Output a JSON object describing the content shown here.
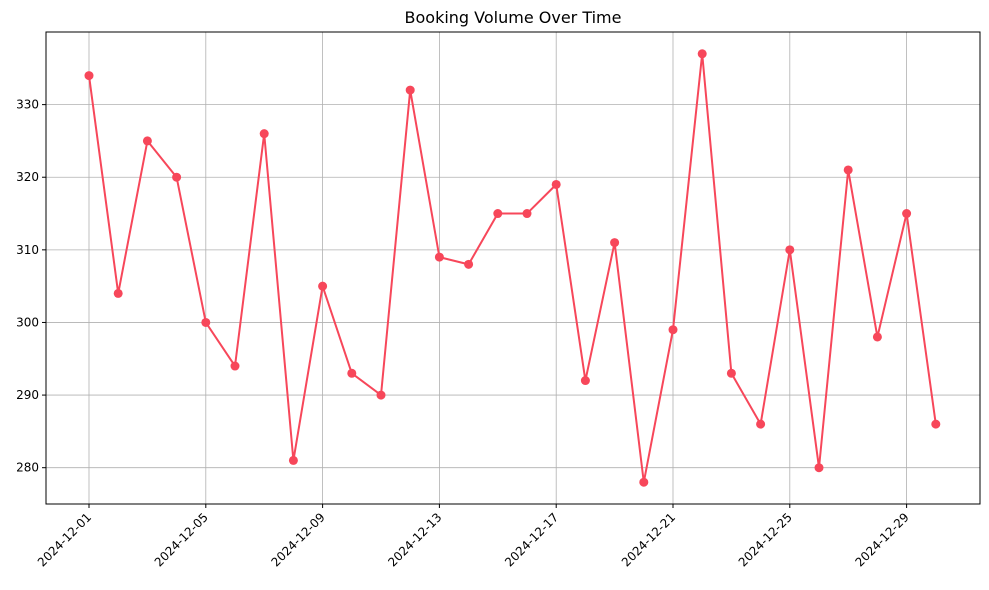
{
  "chart_data": {
    "type": "line",
    "title": "Booking Volume Over Time",
    "xlabel": "",
    "ylabel": "",
    "x": [
      "2024-12-01",
      "2024-12-02",
      "2024-12-03",
      "2024-12-04",
      "2024-12-05",
      "2024-12-06",
      "2024-12-07",
      "2024-12-08",
      "2024-12-09",
      "2024-12-10",
      "2024-12-11",
      "2024-12-12",
      "2024-12-13",
      "2024-12-14",
      "2024-12-15",
      "2024-12-16",
      "2024-12-17",
      "2024-12-18",
      "2024-12-19",
      "2024-12-20",
      "2024-12-21",
      "2024-12-22",
      "2024-12-23",
      "2024-12-24",
      "2024-12-25",
      "2024-12-26",
      "2024-12-27",
      "2024-12-28",
      "2024-12-29",
      "2024-12-30"
    ],
    "series": [
      {
        "values": [
          334,
          304,
          325,
          320,
          300,
          294,
          326,
          281,
          305,
          293,
          290,
          332,
          309,
          308,
          315,
          315,
          319,
          292,
          311,
          278,
          299,
          337,
          293,
          286,
          310,
          280,
          321,
          298,
          315,
          286
        ],
        "color": "#f7475a",
        "marker": "circle"
      }
    ],
    "xticks": [
      "2024-12-01",
      "2024-12-05",
      "2024-12-09",
      "2024-12-13",
      "2024-12-17",
      "2024-12-21",
      "2024-12-25",
      "2024-12-29"
    ],
    "yticks": [
      280,
      290,
      300,
      310,
      320,
      330
    ],
    "ylim": [
      275,
      340
    ],
    "grid": true
  }
}
